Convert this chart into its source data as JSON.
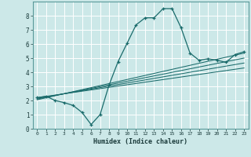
{
  "xlabel": "Humidex (Indice chaleur)",
  "bg_color": "#cce8e8",
  "grid_color": "#ffffff",
  "line_color": "#1a6b6b",
  "xlim": [
    -0.5,
    23.5
  ],
  "ylim": [
    0,
    9
  ],
  "xticks": [
    0,
    1,
    2,
    3,
    4,
    5,
    6,
    7,
    8,
    9,
    10,
    11,
    12,
    13,
    14,
    15,
    16,
    17,
    18,
    19,
    20,
    21,
    22,
    23
  ],
  "yticks": [
    0,
    1,
    2,
    3,
    4,
    5,
    6,
    7,
    8
  ],
  "main_line_x": [
    0,
    1,
    2,
    3,
    4,
    5,
    6,
    7,
    8,
    9,
    10,
    11,
    12,
    13,
    14,
    15,
    16,
    17,
    18,
    19,
    20,
    21,
    22,
    23
  ],
  "main_line_y": [
    2.2,
    2.3,
    2.0,
    1.85,
    1.65,
    1.15,
    0.3,
    1.0,
    3.1,
    4.75,
    6.05,
    7.35,
    7.85,
    7.85,
    8.5,
    8.5,
    7.15,
    5.35,
    4.85,
    4.95,
    4.85,
    4.7,
    5.25,
    5.45
  ],
  "reg_lines": [
    {
      "x": [
        0,
        23
      ],
      "y": [
        2.05,
        5.35
      ]
    },
    {
      "x": [
        0,
        23
      ],
      "y": [
        2.1,
        5.0
      ]
    },
    {
      "x": [
        0,
        23
      ],
      "y": [
        2.15,
        4.65
      ]
    },
    {
      "x": [
        0,
        23
      ],
      "y": [
        2.2,
        4.3
      ]
    }
  ]
}
